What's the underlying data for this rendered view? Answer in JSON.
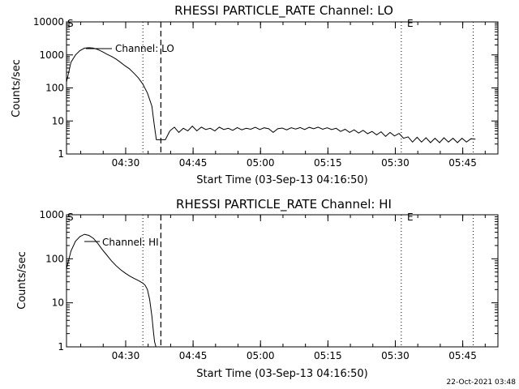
{
  "chart_data": [
    {
      "type": "line",
      "title": "RHESSI PARTICLE_RATE Channel: LO",
      "xlabel": "Start Time (03-Sep-13 04:16:50)",
      "ylabel": "Counts/sec",
      "x_unit": "minutes after 04:16:50",
      "xlim": [
        0,
        96
      ],
      "ylim": [
        1,
        10000
      ],
      "yscale": "log",
      "x_ticks": [
        {
          "t": 13.17,
          "label": "04:30"
        },
        {
          "t": 28.17,
          "label": "04:45"
        },
        {
          "t": 43.17,
          "label": "05:00"
        },
        {
          "t": 58.17,
          "label": "05:15"
        },
        {
          "t": 73.17,
          "label": "05:30"
        },
        {
          "t": 88.17,
          "label": "05:45"
        }
      ],
      "y_ticks": [
        {
          "v": 1,
          "label": "1"
        },
        {
          "v": 10,
          "label": "10"
        },
        {
          "v": 100,
          "label": "100"
        },
        {
          "v": 1000,
          "label": "1000"
        },
        {
          "v": 10000,
          "label": "10000"
        }
      ],
      "legend": "Channel: LO",
      "markers": {
        "s": "S",
        "e": "E"
      },
      "vlines": [
        {
          "t": 17.0,
          "style": "dotted"
        },
        {
          "t": 21.0,
          "style": "dashed"
        },
        {
          "t": 74.5,
          "style": "dotted"
        },
        {
          "t": 90.5,
          "style": "dotted"
        }
      ],
      "segments": [
        {
          "x": [
            0,
            1,
            2,
            3,
            4,
            5,
            6,
            7,
            8,
            9,
            10,
            11,
            12,
            13,
            14,
            15,
            16,
            17,
            18,
            19,
            19.5,
            20,
            22,
            23
          ],
          "y": [
            150,
            600,
            1000,
            1350,
            1600,
            1650,
            1600,
            1450,
            1250,
            1050,
            900,
            750,
            600,
            470,
            380,
            280,
            200,
            130,
            70,
            28,
            8,
            2.7,
            2.7,
            5
          ]
        },
        {
          "x": [
            23,
            24,
            25,
            26,
            27,
            28,
            29,
            30,
            31,
            32,
            33,
            34,
            35,
            36,
            37,
            38,
            39,
            40,
            41,
            42,
            43,
            44,
            45,
            46,
            47,
            48,
            49,
            50,
            51,
            52,
            53,
            54,
            55,
            56,
            57,
            58,
            59,
            60,
            61,
            62,
            63,
            64,
            65,
            66,
            67,
            68,
            69,
            70,
            71,
            72,
            73,
            74,
            75,
            76,
            77,
            78,
            79,
            80,
            81,
            82,
            83,
            84,
            85,
            86,
            87,
            88,
            89,
            90,
            91
          ],
          "y": [
            5,
            6.5,
            4.5,
            6,
            5,
            7,
            5,
            6.5,
            5.5,
            6,
            5,
            6.5,
            5.5,
            6,
            5.2,
            6.3,
            5.4,
            6,
            5.6,
            6.4,
            5.5,
            6.2,
            5.8,
            4.5,
            5.8,
            6.1,
            5.4,
            6.2,
            5.7,
            6.3,
            5.5,
            6.4,
            5.8,
            6.5,
            5.6,
            6.2,
            5.5,
            6,
            4.8,
            5.6,
            4.5,
            5.4,
            4.3,
            5.2,
            4.1,
            4.8,
            3.8,
            4.7,
            3.4,
            4.5,
            3.5,
            4.2,
            3,
            3.3,
            2.3,
            3.2,
            2.3,
            3.1,
            2.2,
            3,
            2.2,
            3.1,
            2.3,
            3,
            2.2,
            3,
            2.3,
            2.9,
            2.8
          ]
        }
      ]
    },
    {
      "type": "line",
      "title": "RHESSI PARTICLE_RATE Channel: HI",
      "xlabel": "Start Time (03-Sep-13 04:16:50)",
      "ylabel": "Counts/sec",
      "x_unit": "minutes after 04:16:50",
      "xlim": [
        0,
        96
      ],
      "ylim": [
        1,
        1000
      ],
      "yscale": "log",
      "x_ticks": [
        {
          "t": 13.17,
          "label": "04:30"
        },
        {
          "t": 28.17,
          "label": "04:45"
        },
        {
          "t": 43.17,
          "label": "05:00"
        },
        {
          "t": 58.17,
          "label": "05:15"
        },
        {
          "t": 73.17,
          "label": "05:30"
        },
        {
          "t": 88.17,
          "label": "05:45"
        }
      ],
      "y_ticks": [
        {
          "v": 1,
          "label": "1"
        },
        {
          "v": 10,
          "label": "10"
        },
        {
          "v": 100,
          "label": "100"
        },
        {
          "v": 1000,
          "label": "1000"
        }
      ],
      "legend": "Channel: HI",
      "markers": {
        "s": "S",
        "e": "E"
      },
      "vlines": [
        {
          "t": 17.0,
          "style": "dotted"
        },
        {
          "t": 21.0,
          "style": "dashed"
        },
        {
          "t": 74.5,
          "style": "dotted"
        },
        {
          "t": 90.5,
          "style": "dotted"
        }
      ],
      "segments": [
        {
          "x": [
            0,
            1,
            2,
            3,
            4,
            5,
            6,
            7,
            8,
            9,
            10,
            11,
            12,
            13,
            14,
            15,
            16,
            17,
            17.5,
            18,
            18.5,
            19,
            19.3,
            19.6,
            19.9
          ],
          "y": [
            60,
            150,
            250,
            320,
            360,
            340,
            290,
            220,
            160,
            120,
            90,
            70,
            57,
            48,
            41,
            36,
            32,
            28,
            25,
            20,
            12,
            5,
            2.4,
            1.3,
            1.0
          ]
        }
      ]
    }
  ],
  "footer": {
    "date": "22-Oct-2021 03:48"
  }
}
